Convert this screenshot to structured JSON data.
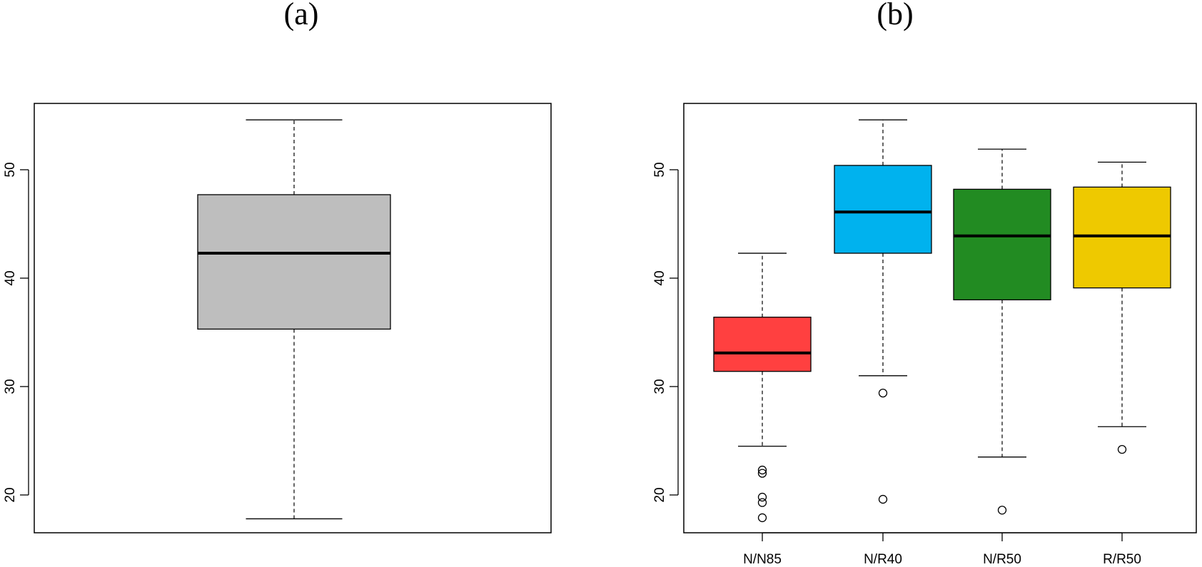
{
  "chart_data": [
    {
      "type": "box",
      "title": "(a)",
      "xlabel": "",
      "ylabel": "",
      "ylim": [
        17,
        56
      ],
      "yticks": [
        20,
        30,
        40,
        50
      ],
      "grid": false,
      "categories": [],
      "boxes": [
        {
          "name": "",
          "min": 17.8,
          "q1": 35.3,
          "median": 42.3,
          "q3": 47.7,
          "max": 54.6,
          "outliers": [],
          "color": "#bebebe"
        }
      ]
    },
    {
      "type": "box",
      "title": "(b)",
      "xlabel": "",
      "ylabel": "",
      "ylim": [
        17,
        56
      ],
      "yticks": [
        20,
        30,
        40,
        50
      ],
      "grid": false,
      "categories": [
        "N/N85",
        "N/R40",
        "N/R50",
        "R/R50"
      ],
      "boxes": [
        {
          "name": "N/N85",
          "min": 24.5,
          "q1": 31.4,
          "median": 33.1,
          "q3": 36.4,
          "max": 42.3,
          "outliers": [
            22.3,
            22.0,
            19.8,
            19.3,
            17.9
          ],
          "color": "#ff4040"
        },
        {
          "name": "N/R40",
          "min": 31.0,
          "q1": 42.3,
          "median": 46.1,
          "q3": 50.4,
          "max": 54.6,
          "outliers": [
            29.4,
            19.6
          ],
          "color": "#00b2ee"
        },
        {
          "name": "N/R50",
          "min": 23.5,
          "q1": 38.0,
          "median": 43.9,
          "q3": 48.2,
          "max": 51.9,
          "outliers": [
            18.6
          ],
          "color": "#228b22"
        },
        {
          "name": "R/R50",
          "min": 26.3,
          "q1": 39.1,
          "median": 43.9,
          "q3": 48.4,
          "max": 50.7,
          "outliers": [
            24.2
          ],
          "color": "#eec900"
        }
      ]
    }
  ]
}
